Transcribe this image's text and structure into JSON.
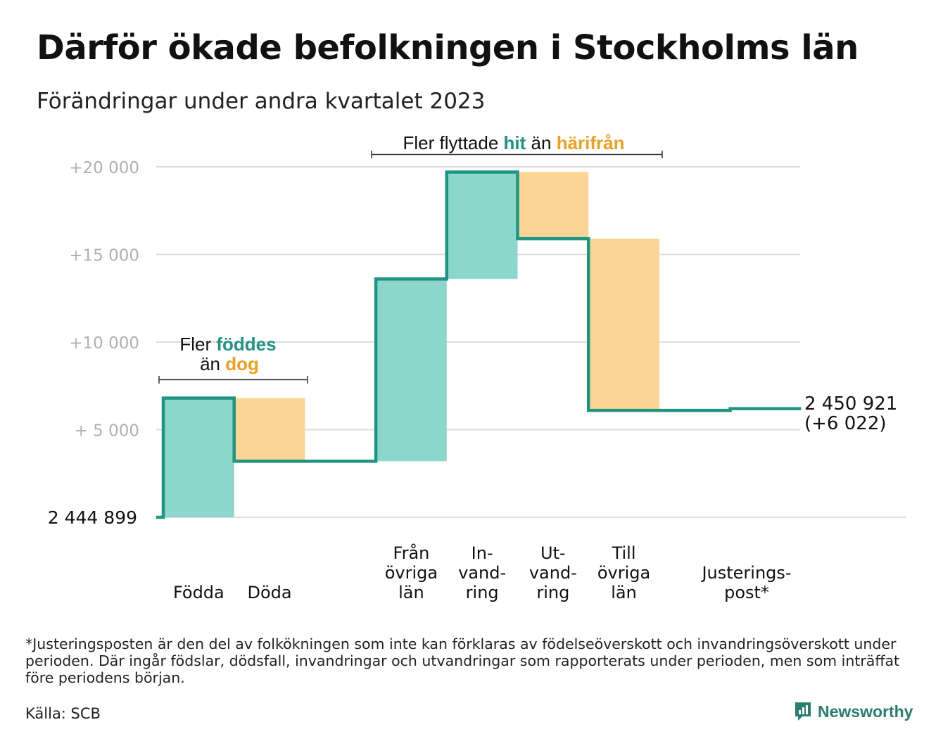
{
  "title": "Därför ökade befolkningen i Stockholms län",
  "subtitle": "Förändringar under andra kvartalet 2023",
  "colors": {
    "increase": "#8dd6cb",
    "decrease": "#fad595",
    "line": "#1e9483",
    "grid": "#dddddd",
    "hit": "#1e9483",
    "harifran": "#f0a020"
  },
  "annotations": {
    "births_deaths": {
      "line1_prefix": "Fler",
      "line1_word": "föddes",
      "line2_prefix": "än",
      "line2_word": "dog"
    },
    "migration": {
      "prefix": "Fler flyttade",
      "word1": "hit",
      "middle": "än",
      "word2": "härifrån"
    }
  },
  "chart_data": {
    "type": "waterfall",
    "start": {
      "label": "2 444 899",
      "value": 0
    },
    "y_ticks": [
      "+20 000",
      "+15 000",
      "+10 000",
      "+ 5 000"
    ],
    "y_tick_values": [
      20000,
      15000,
      10000,
      5000
    ],
    "ylim": [
      0,
      20000
    ],
    "grid": true,
    "categories": [
      "Födda",
      "Döda",
      "",
      "Från övriga län",
      "In-vand-ring",
      "Ut-vand-ring",
      "Till övriga län",
      "",
      "Justerings-post*"
    ],
    "category_lines": [
      [
        "Födda"
      ],
      [
        "Döda"
      ],
      [],
      [
        "Från",
        "övriga",
        "län"
      ],
      [
        "In-",
        "vand-",
        "ring"
      ],
      [
        "Ut-",
        "vand-",
        "ring"
      ],
      [
        "Till",
        "övriga",
        "län"
      ],
      [],
      [
        "Justerings-",
        "post*"
      ]
    ],
    "steps": [
      {
        "category": "Födda",
        "change": 6800
      },
      {
        "category": "Döda",
        "change": -3600
      },
      {
        "category": "",
        "change": 0
      },
      {
        "category": "Från övriga län",
        "change": 10400
      },
      {
        "category": "In-vand-ring",
        "change": 6100
      },
      {
        "category": "Ut-vand-ring",
        "change": -3800
      },
      {
        "category": "Till övriga län",
        "change": -9800
      },
      {
        "category": "",
        "change": 0
      },
      {
        "category": "Justerings-post*",
        "change": 100
      }
    ],
    "end": {
      "label_line1": "2 450 921",
      "label_line2": "(+6 022)",
      "value": 6022
    }
  },
  "footnote": "*Justeringsposten är den del av folkökningen som inte kan förklaras av födelseöverskott och invandringsöverskott under perioden. Där ingår födslar, dödsfall, invandringar och utvandringar som rapporterats under perioden, men som inträffat före periodens början.",
  "source": "Källa: SCB",
  "brand": {
    "name": "Newsworthy",
    "icon": "chart-bubble-icon"
  }
}
